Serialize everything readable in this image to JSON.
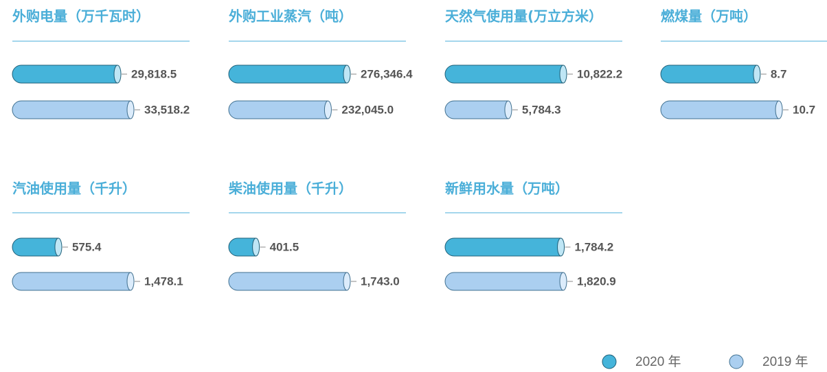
{
  "legend": [
    {
      "name": "2020 年",
      "color": "#45b4da"
    },
    {
      "name": "2019 年",
      "color": "#abcff0"
    }
  ],
  "chart_data": [
    {
      "type": "bar",
      "title": "外购电量（万千瓦时）",
      "values": [
        29818.5,
        33518.2
      ],
      "value_labels": [
        "29,818.5",
        "33,518.2"
      ]
    },
    {
      "type": "bar",
      "title": "外购工业蒸汽（吨）",
      "values": [
        276346.4,
        232045.0
      ],
      "value_labels": [
        "276,346.4",
        "232,045.0"
      ]
    },
    {
      "type": "bar",
      "title": "天然气使用量(万立方米）",
      "values": [
        10822.2,
        5784.3
      ],
      "value_labels": [
        "10,822.2",
        "5,784.3"
      ]
    },
    {
      "type": "bar",
      "title": "燃煤量（万吨）",
      "values": [
        8.7,
        10.7
      ],
      "value_labels": [
        "8.7",
        "10.7"
      ]
    },
    {
      "type": "bar",
      "title": "汽油使用量（千升）",
      "values": [
        575.4,
        1478.1
      ],
      "value_labels": [
        "575.4",
        "1,478.1"
      ]
    },
    {
      "type": "bar",
      "title": "柴油使用量（千升）",
      "values": [
        401.5,
        1743.0
      ],
      "value_labels": [
        "401.5",
        "1,743.0"
      ]
    },
    {
      "type": "bar",
      "title": "新鲜用水量（万吨）",
      "values": [
        1784.2,
        1820.9
      ],
      "value_labels": [
        "1,784.2",
        "1,820.9"
      ]
    }
  ]
}
